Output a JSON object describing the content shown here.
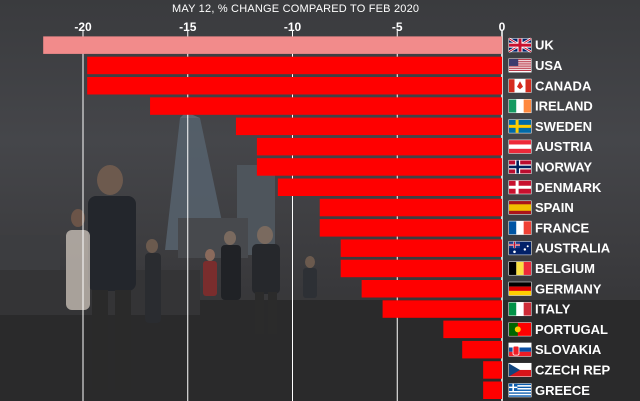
{
  "chart_data": {
    "type": "bar",
    "orientation": "horizontal",
    "title": "MAY 12, % CHANGE COMPARED TO FEB 2020",
    "xlim": [
      -23,
      0
    ],
    "xticks": [
      -20,
      -15,
      -10,
      -5,
      0
    ],
    "xtick_labels": [
      "-20",
      "-15",
      "-10",
      "-5",
      "0"
    ],
    "grid": true,
    "categories": [
      "UK",
      "USA",
      "CANADA",
      "IRELAND",
      "SWEDEN",
      "AUSTRIA",
      "NORWAY",
      "DENMARK",
      "SPAIN",
      "FRANCE",
      "AUSTRALIA",
      "BELGIUM",
      "GERMANY",
      "ITALY",
      "PORTUGAL",
      "SLOVAKIA",
      "CZECH REP",
      "GREECE"
    ],
    "values": [
      -21.9,
      -19.8,
      -19.8,
      -16.8,
      -12.7,
      -11.7,
      -11.7,
      -10.7,
      -8.7,
      -8.7,
      -7.7,
      -7.7,
      -6.7,
      -5.7,
      -2.8,
      -1.9,
      -0.9,
      -0.9
    ],
    "highlight_category": "UK",
    "colors": {
      "bar": "#ff0000",
      "highlight": "#f28b8b",
      "axis": "#ffffff",
      "text": "#ffffff"
    },
    "flags": [
      "gb-flag-icon",
      "us-flag-icon",
      "ca-flag-icon",
      "ie-flag-icon",
      "se-flag-icon",
      "at-flag-icon",
      "no-flag-icon",
      "dk-flag-icon",
      "es-flag-icon",
      "fr-flag-icon",
      "au-flag-icon",
      "be-flag-icon",
      "de-flag-icon",
      "it-flag-icon",
      "pt-flag-icon",
      "sk-flag-icon",
      "cz-flag-icon",
      "gr-flag-icon"
    ]
  }
}
